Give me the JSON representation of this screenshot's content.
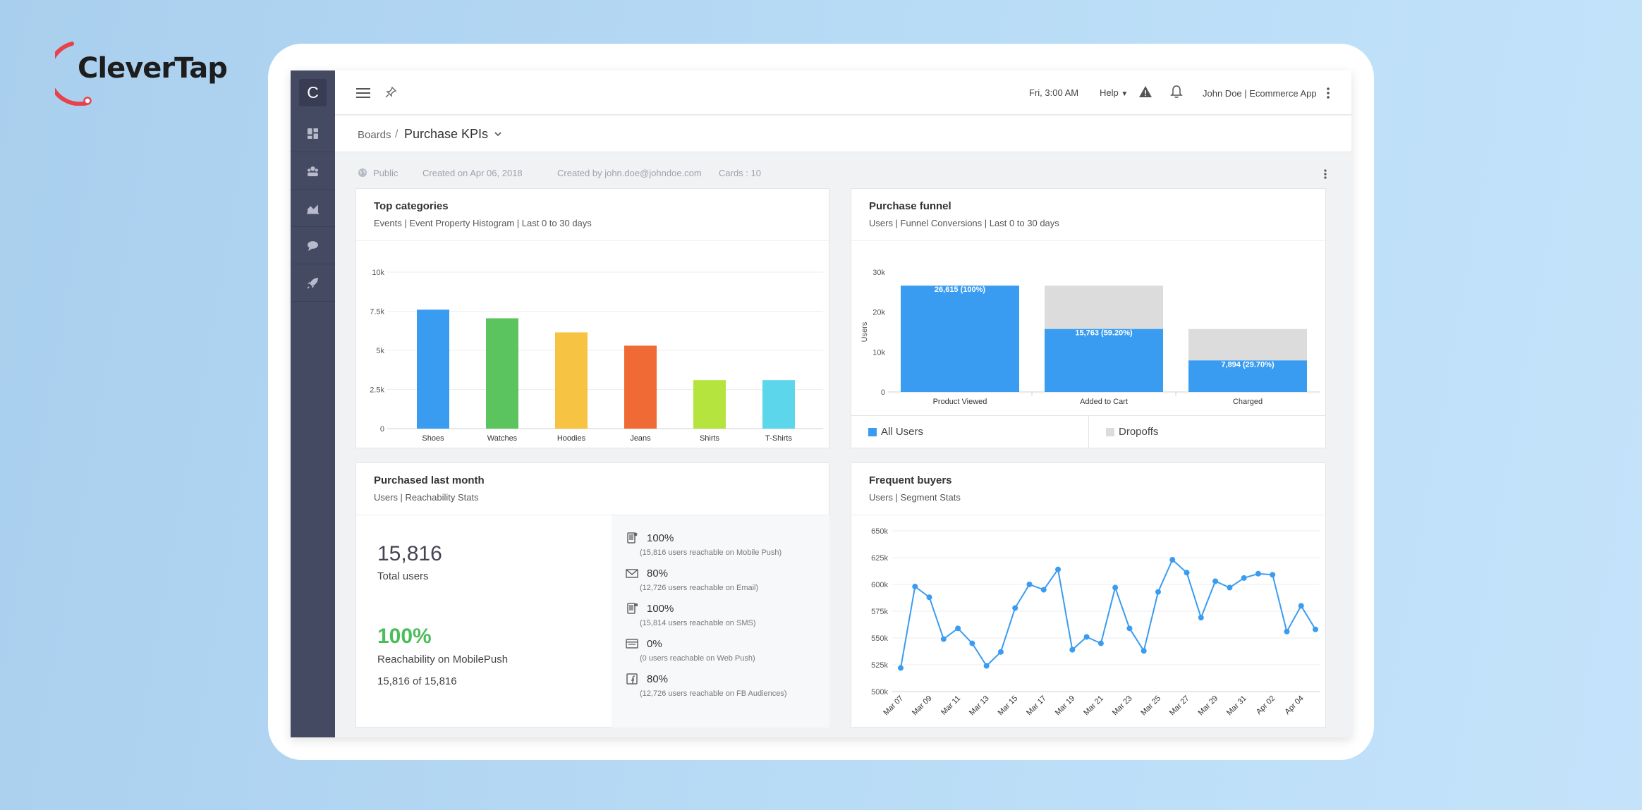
{
  "brand": {
    "name": "CleverTap",
    "accent": "#e8414b"
  },
  "sidebar": {
    "logo": "C",
    "items": [
      {
        "icon": "dashboard-icon"
      },
      {
        "icon": "segments-icon"
      },
      {
        "icon": "analytics-icon"
      },
      {
        "icon": "messages-icon"
      },
      {
        "icon": "campaigns-icon"
      }
    ]
  },
  "topbar": {
    "time": "Fri, 3:00 AM",
    "help": "Help",
    "user": "John Doe | Ecommerce App"
  },
  "breadcrumb": {
    "root": "Boards",
    "separator": "/",
    "title": "Purchase KPIs"
  },
  "meta": {
    "visibility": "Public",
    "created_on": "Created on Apr 06, 2018",
    "created_by": "Created by john.doe@johndoe.com",
    "cards": "Cards : 10"
  },
  "cards": {
    "top_categories": {
      "title": "Top categories",
      "subtitle": "Events | Event Property Histogram | Last 0 to 30 days"
    },
    "purchase_funnel": {
      "title": "Purchase funnel",
      "subtitle": "Users | Funnel Conversions | Last 0 to 30 days"
    },
    "purchased_last_month": {
      "title": "Purchased last month",
      "subtitle": "Users | Reachability Stats"
    },
    "frequent_buyers": {
      "title": "Frequent buyers",
      "subtitle": "Users | Segment Stats"
    }
  },
  "funnel_legend": [
    {
      "label": "All Users",
      "color": "#3a9cf0"
    },
    {
      "label": "Dropoffs",
      "color": "#dcdcdc"
    }
  ],
  "purchased": {
    "total_users": "15,816",
    "total_users_label": "Total users",
    "reachability_pct": "100%",
    "reachability_label": "Reachability on MobilePush",
    "reachability_of": "15,816 of 15,816",
    "channels": [
      {
        "icon": "mobile-push-icon",
        "pct": "100%",
        "note": "(15,816 users reachable on Mobile Push)"
      },
      {
        "icon": "email-icon",
        "pct": "80%",
        "note": "(12,726 users reachable on Email)"
      },
      {
        "icon": "sms-icon",
        "pct": "100%",
        "note": "(15,814 users reachable on SMS)"
      },
      {
        "icon": "web-push-icon",
        "pct": "0%",
        "note": "(0 users reachable on Web Push)"
      },
      {
        "icon": "facebook-icon",
        "pct": "80%",
        "note": "(12,726 users reachable on FB Audiences)"
      }
    ]
  },
  "chart_data": [
    {
      "type": "bar",
      "categories": [
        "Shoes",
        "Watches",
        "Hoodies",
        "Jeans",
        "Shirts",
        "T-Shirts"
      ],
      "values": [
        7600,
        7050,
        6150,
        5300,
        3100,
        3100
      ],
      "colors": [
        "#3a9cf0",
        "#5bc45f",
        "#f7c342",
        "#ef6a35",
        "#b5e43f",
        "#5bd6ea"
      ],
      "yticks": [
        "0",
        "2.5k",
        "5k",
        "7.5k",
        "10k"
      ],
      "ylim": [
        0,
        10000
      ],
      "grid": true
    },
    {
      "type": "bar",
      "stacked": true,
      "categories": [
        "Product Viewed",
        "Added to Cart",
        "Charged"
      ],
      "ylabel": "Users",
      "yticks": [
        "0",
        "10k",
        "20k",
        "30k"
      ],
      "ylim": [
        0,
        30000
      ],
      "series": [
        {
          "name": "All Users",
          "values": [
            26615,
            15763,
            7894
          ],
          "labels": [
            "26,615 (100%)",
            "15,763 (59.20%)",
            "7,894 (29.70%)"
          ]
        },
        {
          "name": "Dropoffs",
          "values": [
            0,
            10852,
            7869
          ]
        }
      ]
    },
    {
      "type": "line",
      "x": [
        "Mar 07",
        "Mar 08",
        "Mar 09",
        "Mar 10",
        "Mar 11",
        "Mar 12",
        "Mar 13",
        "Mar 14",
        "Mar 15",
        "Mar 16",
        "Mar 17",
        "Mar 18",
        "Mar 19",
        "Mar 20",
        "Mar 21",
        "Mar 22",
        "Mar 23",
        "Mar 24",
        "Mar 25",
        "Mar 26",
        "Mar 27",
        "Mar 28",
        "Mar 29",
        "Mar 30",
        "Mar 31",
        "Apr 01",
        "Apr 02",
        "Apr 03",
        "Apr 04",
        "Apr 05"
      ],
      "xticks": [
        "Mar 07",
        "Mar 09",
        "Mar 11",
        "Mar 13",
        "Mar 15",
        "Mar 17",
        "Mar 19",
        "Mar 21",
        "Mar 23",
        "Mar 25",
        "Mar 27",
        "Mar 29",
        "Mar 31",
        "Apr 02",
        "Apr 04"
      ],
      "values": [
        522000,
        598000,
        588000,
        549000,
        559000,
        545000,
        524000,
        537000,
        578000,
        600000,
        595000,
        614000,
        539000,
        551000,
        545000,
        597000,
        559000,
        538000,
        593000,
        623000,
        611000,
        569000,
        603000,
        597000,
        606000,
        610000,
        609000,
        556000,
        580000,
        558000
      ],
      "yticks": [
        "500k",
        "525k",
        "550k",
        "575k",
        "600k",
        "625k",
        "650k"
      ],
      "ylim": [
        500000,
        650000
      ],
      "color": "#3a9cf0",
      "grid": true
    }
  ]
}
